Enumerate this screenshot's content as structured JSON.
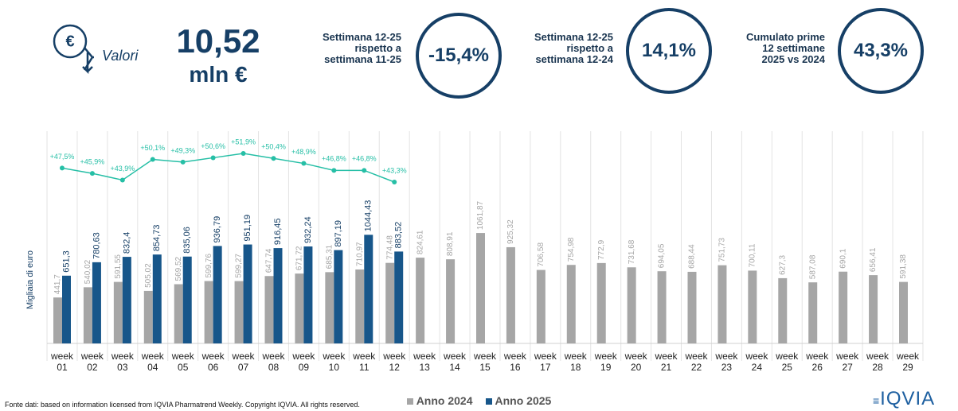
{
  "header": {
    "label": "Valori",
    "value": "10,52",
    "unit": "mln €",
    "kpis": [
      {
        "text": "Settimana 12-25\nrispetto a\nsettimana 11-25",
        "value": "-15,4%"
      },
      {
        "text": "Settimana 12-25\nrispetto a\nsettimana 12-24",
        "value": "14,1%"
      },
      {
        "text": "Cumulato prime\n12 settimane\n2025 vs 2024",
        "value": "43,3%"
      }
    ]
  },
  "chart_data": {
    "type": "bar",
    "y_label": "Migliaia di euro",
    "ylim": [
      0,
      1200
    ],
    "categories": [
      "week 01",
      "week 02",
      "week 03",
      "week 04",
      "week 05",
      "week 06",
      "week 07",
      "week 08",
      "week 09",
      "week 10",
      "week 11",
      "week 12",
      "week 13",
      "week 14",
      "week 15",
      "week 16",
      "week 17",
      "week 18",
      "week 19",
      "week 20",
      "week 21",
      "week 22",
      "week 23",
      "week 24",
      "week 25",
      "week 26",
      "week 27",
      "week 28",
      "week 29"
    ],
    "series": [
      {
        "name": "Anno 2024",
        "color": "#a6a6a6",
        "values": [
          441.7,
          540.02,
          591.55,
          505.02,
          569.52,
          599.76,
          599.27,
          647.74,
          671.72,
          685.31,
          710.97,
          774.48,
          824.61,
          808.91,
          1061.87,
          925.32,
          706.58,
          754.98,
          772.9,
          731.68,
          694.05,
          688.44,
          751.73,
          700.11,
          627.3,
          587.08,
          690.1,
          656.41,
          591.38
        ],
        "value_labels": [
          "441,7",
          "540,02",
          "591,55",
          "505,02",
          "569,52",
          "599,76",
          "599,27",
          "647,74",
          "671,72",
          "685,31",
          "710,97",
          "774,48",
          "824,61",
          "808,91",
          "1061,87",
          "925,32",
          "706,58",
          "754,98",
          "772,9",
          "731,68",
          "694,05",
          "688,44",
          "751,73",
          "700,11",
          "627,3",
          "587,08",
          "690,1",
          "656,41",
          "591,38"
        ]
      },
      {
        "name": "Anno 2025",
        "color": "#17568a",
        "values": [
          651.3,
          780.63,
          832.4,
          854.73,
          835.06,
          936.79,
          951.19,
          916.45,
          932.24,
          897.19,
          1044.43,
          883.52,
          null,
          null,
          null,
          null,
          null,
          null,
          null,
          null,
          null,
          null,
          null,
          null,
          null,
          null,
          null,
          null,
          null
        ],
        "value_labels": [
          "651,3",
          "780,63",
          "832,4",
          "854,73",
          "835,06",
          "936,79",
          "951,19",
          "916,45",
          "932,24",
          "897,19",
          "1044,43",
          "883,52",
          null,
          null,
          null,
          null,
          null,
          null,
          null,
          null,
          null,
          null,
          null,
          null,
          null,
          null,
          null,
          null,
          null
        ]
      }
    ],
    "growth": {
      "type": "line",
      "color": "#26bfa6",
      "values": [
        47.5,
        45.9,
        43.9,
        50.1,
        49.3,
        50.6,
        51.9,
        50.4,
        48.9,
        46.8,
        46.8,
        43.3
      ],
      "value_labels": [
        "+47,5%",
        "+45,9%",
        "+43,9%",
        "+50,1%",
        "+49,3%",
        "+50,6%",
        "+51,9%",
        "+50,4%",
        "+48,9%",
        "+46,8%",
        "+46,8%",
        "+43,3%"
      ]
    }
  },
  "footer": {
    "source": "Fonte dati: based on information licensed from IQVIA Pharmatrend Weekly. Copyright IQVIA. All rights reserved.",
    "logo": "IQVIA"
  }
}
